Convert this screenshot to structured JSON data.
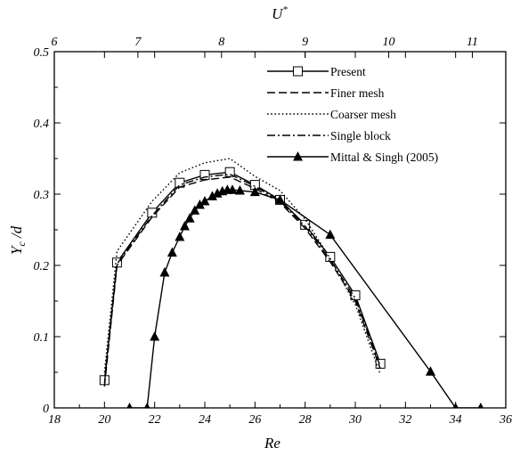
{
  "chart_data": {
    "type": "line",
    "xlabel": "Re",
    "ylabel": "Y",
    "ylabel_sub": "c",
    "ylabel_suffix": " /d",
    "x2label": "U",
    "x2label_sup": "*",
    "xlim": [
      18,
      36
    ],
    "ylim": [
      0,
      0.5
    ],
    "x2lim": [
      6.0,
      11.4
    ],
    "xticks": [
      18,
      20,
      22,
      24,
      26,
      28,
      30,
      32,
      34,
      36
    ],
    "xtick_labels": [
      "18",
      "20",
      "22",
      "24",
      "26",
      "28",
      "30",
      "32",
      "34",
      "36"
    ],
    "yticks": [
      0,
      0.1,
      0.2,
      0.3,
      0.4,
      0.5
    ],
    "ytick_labels": [
      "0",
      "0.1",
      "0.2",
      "0.3",
      "0.4",
      "0.5"
    ],
    "x2ticks": [
      6,
      7,
      8,
      9,
      10,
      11
    ],
    "x2tick_labels": [
      "6",
      "7",
      "8",
      "9",
      "10",
      "11"
    ],
    "legend_position": "top-right",
    "grid": false,
    "series": [
      {
        "name": "Present",
        "style": "solid",
        "marker": "square",
        "x": [
          20,
          20.5,
          21.9,
          23,
          24,
          25,
          26,
          27,
          28,
          29,
          30,
          31
        ],
        "y": [
          0.039,
          0.204,
          0.274,
          0.316,
          0.327,
          0.331,
          0.313,
          0.292,
          0.257,
          0.212,
          0.158,
          0.062
        ]
      },
      {
        "name": "Finer mesh",
        "style": "dashed",
        "x": [
          20,
          20.5,
          21.9,
          23,
          24,
          25,
          26,
          27,
          28,
          29,
          30,
          31
        ],
        "y": [
          0.03,
          0.2,
          0.268,
          0.31,
          0.32,
          0.324,
          0.308,
          0.288,
          0.252,
          0.205,
          0.15,
          0.055
        ]
      },
      {
        "name": "Coarser mesh",
        "style": "dotted",
        "x": [
          20,
          20.5,
          21.9,
          23,
          24,
          25,
          26,
          27,
          28,
          29,
          30,
          31
        ],
        "y": [
          0.05,
          0.22,
          0.29,
          0.33,
          0.344,
          0.35,
          0.325,
          0.305,
          0.265,
          0.21,
          0.145,
          0.047
        ]
      },
      {
        "name": "Single block",
        "style": "dashdot",
        "x": [
          20,
          20.5,
          21.9,
          23,
          24,
          25,
          26,
          27,
          28,
          29,
          30,
          31
        ],
        "y": [
          0.035,
          0.202,
          0.27,
          0.313,
          0.324,
          0.328,
          0.311,
          0.29,
          0.255,
          0.208,
          0.154,
          0.058
        ]
      },
      {
        "name": "Mittal & Singh (2005)",
        "style": "solid",
        "marker": "triangle",
        "x": [
          21,
          21.7,
          22,
          22.4,
          22.7,
          23.0,
          23.2,
          23.4,
          23.6,
          23.8,
          24.0,
          24.3,
          24.5,
          24.7,
          24.9,
          25.1,
          25.4,
          26.0,
          27.0,
          29.0,
          33.0,
          34.0,
          35.0
        ],
        "y": [
          0,
          0,
          0.1,
          0.19,
          0.218,
          0.24,
          0.255,
          0.266,
          0.277,
          0.285,
          0.29,
          0.297,
          0.301,
          0.304,
          0.306,
          0.306,
          0.305,
          0.303,
          0.292,
          0.243,
          0.051,
          0,
          0
        ]
      }
    ]
  }
}
